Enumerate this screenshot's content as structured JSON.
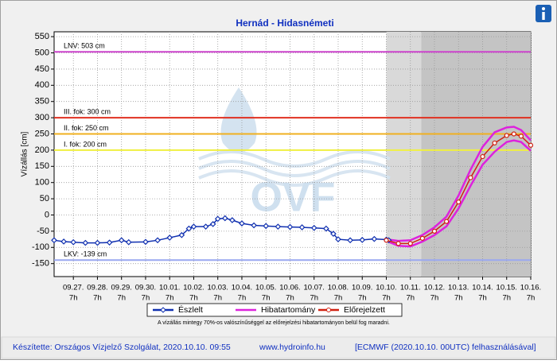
{
  "chart_data": {
    "type": "line",
    "title": "Hernád - Hidasnémeti",
    "ylabel": "Vízállás [cm]",
    "watermark": "OVF",
    "xlim": [
      -0.8,
      19
    ],
    "ylim": [
      -190,
      565
    ],
    "yticks": [
      -150,
      -100,
      -50,
      0,
      50,
      100,
      150,
      200,
      250,
      300,
      350,
      400,
      450,
      500,
      550
    ],
    "xticks": [
      {
        "value": 0,
        "label": "09.27.",
        "hour": "7h"
      },
      {
        "value": 1,
        "label": "09.28.",
        "hour": "7h"
      },
      {
        "value": 2,
        "label": "09.29.",
        "hour": "7h"
      },
      {
        "value": 3,
        "label": "09.30.",
        "hour": "7h"
      },
      {
        "value": 4,
        "label": "10.01.",
        "hour": "7h"
      },
      {
        "value": 5,
        "label": "10.02.",
        "hour": "7h"
      },
      {
        "value": 6,
        "label": "10.03.",
        "hour": "7h"
      },
      {
        "value": 7,
        "label": "10.04.",
        "hour": "7h"
      },
      {
        "value": 8,
        "label": "10.05.",
        "hour": "7h"
      },
      {
        "value": 9,
        "label": "10.06.",
        "hour": "7h"
      },
      {
        "value": 10,
        "label": "10.07.",
        "hour": "7h"
      },
      {
        "value": 11,
        "label": "10.08.",
        "hour": "7h"
      },
      {
        "value": 12,
        "label": "10.09.",
        "hour": "7h"
      },
      {
        "value": 13,
        "label": "10.10.",
        "hour": "7h"
      },
      {
        "value": 14,
        "label": "10.11.",
        "hour": "7h"
      },
      {
        "value": 15,
        "label": "10.12.",
        "hour": "7h"
      },
      {
        "value": 16,
        "label": "10.13.",
        "hour": "7h"
      },
      {
        "value": 17,
        "label": "10.14.",
        "hour": "7h"
      },
      {
        "value": 18,
        "label": "10.15.",
        "hour": "7h"
      },
      {
        "value": 19,
        "label": "10.16.",
        "hour": "7h"
      }
    ],
    "grid": true,
    "shaded_regions": [
      {
        "from": 13,
        "to": 14.45,
        "color": "#d9d9d9"
      },
      {
        "from": 14.45,
        "to": 19,
        "color": "#c4c4c4"
      }
    ],
    "ref_lines": [
      {
        "label": "LNV: 503 cm",
        "value": 503,
        "color": "#cc44cc"
      },
      {
        "label": "III. fok: 300 cm",
        "value": 300,
        "color": "#e03020"
      },
      {
        "label": "II. fok: 250 cm",
        "value": 250,
        "color": "#f0b020"
      },
      {
        "label": "I. fok: 200 cm",
        "value": 200,
        "color": "#f0f040"
      },
      {
        "label": "LKV: -139 cm",
        "value": -139,
        "color": "#9aa8f0"
      }
    ],
    "series": [
      {
        "name": "Észlelt",
        "color": "#1030b0",
        "x": [
          -0.8,
          -0.4,
          0,
          0.5,
          1,
          1.5,
          2,
          2.3,
          3,
          3.5,
          4,
          4.5,
          4.8,
          5,
          5.5,
          5.8,
          6,
          6.3,
          6.6,
          7,
          7.5,
          8,
          8.5,
          9,
          9.5,
          10,
          10.5,
          10.8,
          11,
          11.5,
          12,
          12.5,
          13,
          13.1
        ],
        "values": [
          -78,
          -82,
          -84,
          -86,
          -86,
          -85,
          -78,
          -84,
          -83,
          -78,
          -70,
          -62,
          -42,
          -36,
          -36,
          -28,
          -12,
          -10,
          -16,
          -26,
          -32,
          -34,
          -36,
          -37,
          -38,
          -40,
          -42,
          -58,
          -75,
          -78,
          -77,
          -74,
          -76,
          -78
        ]
      },
      {
        "name": "Hibatartomány",
        "color": "#dd22dd",
        "x": [
          13,
          13.5,
          14,
          14.5,
          15,
          15.5,
          16,
          16.5,
          17,
          17.5,
          18,
          18.3,
          18.6,
          19
        ],
        "upper": [
          -75,
          -80,
          -78,
          -62,
          -38,
          -5,
          60,
          140,
          210,
          255,
          270,
          272,
          262,
          230
        ],
        "lower": [
          -80,
          -95,
          -97,
          -82,
          -62,
          -35,
          20,
          90,
          155,
          195,
          225,
          230,
          225,
          198
        ]
      },
      {
        "name": "Előrejelzett",
        "color": "#d02010",
        "x": [
          13,
          13.5,
          14,
          14.5,
          15,
          15.5,
          16,
          16.5,
          17,
          17.5,
          18,
          18.3,
          18.6,
          19
        ],
        "values": [
          -78,
          -88,
          -88,
          -72,
          -50,
          -20,
          40,
          115,
          180,
          222,
          245,
          250,
          243,
          215
        ]
      }
    ],
    "note": "A vízállás mintegy 70%-os valószínűséggel az előrejelzési hibatartományon belül fog maradni.",
    "footer": {
      "author": "Készítette: Országos Vízjelző Szolgálat, 2020.10.10. 09:55",
      "site": "www.hydroinfo.hu",
      "source": "[ECMWF (2020.10.10. 00UTC) felhasználásával]"
    }
  }
}
